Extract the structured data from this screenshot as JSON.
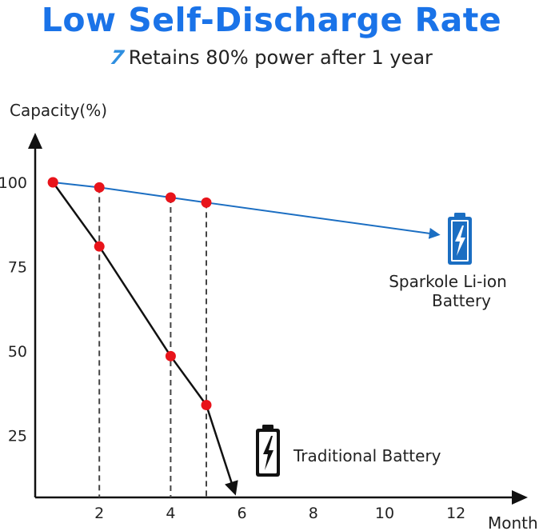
{
  "title": "Low Self-Discharge Rate",
  "subtitle": {
    "mark": "7",
    "text": "Retains 80% power after 1 year"
  },
  "chart_data": {
    "type": "line",
    "xlabel": "Month",
    "ylabel": "Capacity(%)",
    "xlim": [
      0,
      13.5
    ],
    "ylim": [
      0,
      120
    ],
    "x_ticks": [
      2,
      4,
      6,
      8,
      10,
      12
    ],
    "y_ticks": [
      25,
      50,
      75,
      100
    ],
    "grid": false,
    "series": [
      {
        "name": "Sparkole Li-ion Battery",
        "label_lines": [
          "Sparkole Li-ion",
          "Battery"
        ],
        "color": "#1b6ec2",
        "points": [
          [
            0.7,
            100
          ],
          [
            2,
            98.5
          ],
          [
            4,
            95.5
          ],
          [
            5,
            94
          ]
        ],
        "arrow_to": [
          11.5,
          84.5
        ]
      },
      {
        "name": "Traditional Battery",
        "label_lines": [
          "Traditional Battery"
        ],
        "color": "#111111",
        "points": [
          [
            0.7,
            100
          ],
          [
            2,
            81
          ],
          [
            4,
            48.5
          ],
          [
            5,
            34
          ]
        ],
        "arrow_to": [
          5.8,
          8
        ]
      }
    ],
    "dashed_guides_x": [
      2,
      4,
      5
    ],
    "point_color": "#e8141b",
    "battery_icons": [
      "battery-charging-blue",
      "battery-charging-black"
    ]
  }
}
